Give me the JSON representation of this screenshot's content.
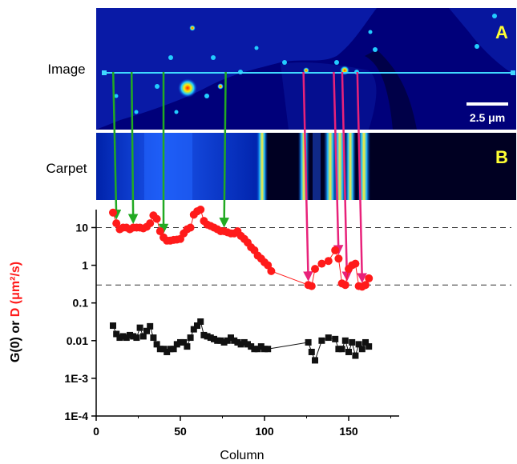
{
  "panels": {
    "image_label": "Image",
    "carpet_label": "Carpet",
    "panel_a_letter": "A",
    "panel_b_letter": "B",
    "scalebar_label": "2.5 μm"
  },
  "colors": {
    "panel_bg": "#00007a",
    "scan_line": "#3fd8ff",
    "panel_letter": "#ffff33",
    "green_arrow": "#22aa22",
    "pink_arrow": "#e8227a",
    "D_series": "#ff1a1a",
    "G_series": "#111111"
  },
  "chart_data": {
    "type": "scatter",
    "xlabel": "Column",
    "ylabel_parts": [
      "G(0) or ",
      "D",
      " (μm²/s)"
    ],
    "ylabel_colors": [
      "#000000",
      "#ff1a1a",
      "#ff1a1a"
    ],
    "y_scale": "log",
    "xlim": [
      0,
      180
    ],
    "ylim": [
      0.0001,
      30
    ],
    "x_ticks": [
      0,
      50,
      100,
      150
    ],
    "x_tick_labels": [
      "0",
      "50",
      "100",
      "150"
    ],
    "y_ticks": [
      0.0001,
      0.001,
      0.01,
      0.1,
      1,
      10
    ],
    "y_tick_labels": [
      "1E-4",
      "1E-3",
      "0.01",
      "0.1",
      "1",
      "10"
    ],
    "reference_lines": [
      10,
      0.3
    ],
    "series": [
      {
        "name": "D",
        "color": "#ff1a1a",
        "marker": "circle",
        "x": [
          10,
          12,
          14,
          16,
          18,
          20,
          22,
          24,
          26,
          28,
          30,
          32,
          34,
          36,
          38,
          40,
          42,
          44,
          46,
          48,
          50,
          52,
          54,
          56,
          58,
          60,
          62,
          64,
          66,
          68,
          70,
          72,
          74,
          76,
          78,
          80,
          82,
          84,
          86,
          88,
          90,
          92,
          94,
          96,
          98,
          100,
          102,
          104,
          126,
          128,
          130,
          134,
          138,
          142,
          144,
          146,
          148,
          150,
          152,
          154,
          156,
          158,
          160,
          162
        ],
        "y": [
          25,
          13,
          9,
          10,
          10,
          9,
          10,
          10,
          10,
          9.5,
          10.5,
          13,
          21,
          17,
          8,
          5.5,
          4.5,
          4.5,
          4.7,
          4.8,
          5,
          7,
          9,
          10,
          22,
          27,
          30,
          15,
          12,
          11,
          10,
          9,
          8,
          8,
          7.5,
          7,
          7,
          8,
          6,
          5,
          4,
          3,
          2.5,
          1.8,
          1.5,
          1.2,
          1,
          0.7,
          0.3,
          0.28,
          0.8,
          1.1,
          1.3,
          2.5,
          1.5,
          0.33,
          0.3,
          0.8,
          1,
          1.1,
          0.28,
          0.27,
          0.3,
          0.45
        ]
      },
      {
        "name": "G(0)",
        "color": "#111111",
        "marker": "square",
        "x": [
          10,
          12,
          14,
          16,
          18,
          20,
          22,
          24,
          26,
          28,
          30,
          32,
          34,
          36,
          38,
          40,
          42,
          44,
          46,
          48,
          50,
          52,
          54,
          56,
          58,
          60,
          62,
          64,
          66,
          68,
          70,
          72,
          74,
          76,
          78,
          80,
          82,
          84,
          86,
          88,
          90,
          92,
          94,
          96,
          98,
          100,
          102,
          126,
          128,
          130,
          134,
          138,
          142,
          144,
          146,
          148,
          150,
          152,
          154,
          156,
          158,
          160,
          162
        ],
        "y": [
          0.025,
          0.015,
          0.012,
          0.013,
          0.012,
          0.014,
          0.013,
          0.012,
          0.022,
          0.013,
          0.018,
          0.024,
          0.012,
          0.008,
          0.006,
          0.006,
          0.005,
          0.006,
          0.006,
          0.008,
          0.009,
          0.009,
          0.007,
          0.012,
          0.02,
          0.025,
          0.032,
          0.014,
          0.013,
          0.012,
          0.011,
          0.01,
          0.01,
          0.009,
          0.01,
          0.012,
          0.01,
          0.009,
          0.008,
          0.009,
          0.008,
          0.007,
          0.006,
          0.006,
          0.007,
          0.006,
          0.006,
          0.009,
          0.005,
          0.003,
          0.01,
          0.012,
          0.011,
          0.006,
          0.006,
          0.01,
          0.005,
          0.009,
          0.004,
          0.008,
          0.006,
          0.009,
          0.007
        ]
      }
    ],
    "arrows": [
      {
        "color": "green",
        "column": 12
      },
      {
        "color": "green",
        "column": 22
      },
      {
        "color": "green",
        "column": 40
      },
      {
        "color": "green",
        "column": 76
      },
      {
        "color": "pink",
        "column": 126
      },
      {
        "color": "pink",
        "column": 144
      },
      {
        "color": "pink",
        "column": 149
      },
      {
        "color": "pink",
        "column": 158
      }
    ]
  }
}
